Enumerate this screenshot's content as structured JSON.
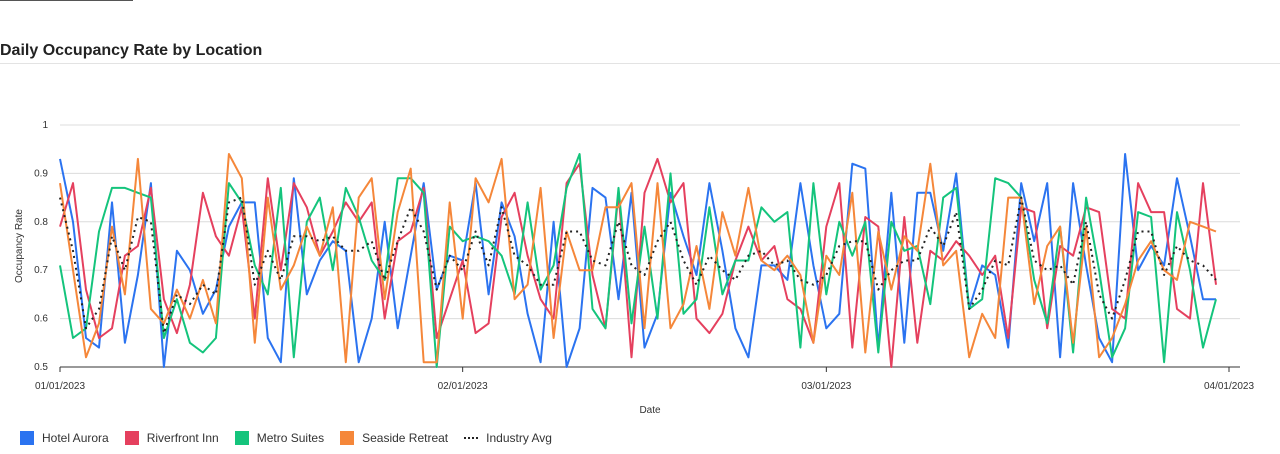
{
  "page": {
    "title": "Daily Occupancy Rate by Location"
  },
  "chart_data": {
    "type": "line",
    "title": "Daily Occupancy Rate by Location",
    "xlabel": "Date",
    "ylabel": "Occupancy Rate",
    "xlim": [
      "01/01/2023",
      "04/01/2023"
    ],
    "ylim": [
      0.5,
      1
    ],
    "grid": true,
    "legend_position": "bottom-left",
    "x_tick_labels": [
      "01/01/2023",
      "02/01/2023",
      "03/01/2023",
      "04/01/2023"
    ],
    "y_tick_labels": [
      "0.5",
      "0.6",
      "0.7",
      "0.8",
      "0.9",
      "1"
    ],
    "x": [
      "01/01",
      "01/02",
      "01/03",
      "01/04",
      "01/05",
      "01/06",
      "01/07",
      "01/08",
      "01/09",
      "01/10",
      "01/11",
      "01/12",
      "01/13",
      "01/14",
      "01/15",
      "01/16",
      "01/17",
      "01/18",
      "01/19",
      "01/20",
      "01/21",
      "01/22",
      "01/23",
      "01/24",
      "01/25",
      "01/26",
      "01/27",
      "01/28",
      "01/29",
      "01/30",
      "01/31",
      "02/01",
      "02/02",
      "02/03",
      "02/04",
      "02/05",
      "02/06",
      "02/07",
      "02/08",
      "02/09",
      "02/10",
      "02/11",
      "02/12",
      "02/13",
      "02/14",
      "02/15",
      "02/16",
      "02/17",
      "02/18",
      "02/19",
      "02/20",
      "02/21",
      "02/22",
      "02/23",
      "02/24",
      "02/25",
      "02/26",
      "02/27",
      "02/28",
      "03/01",
      "03/02",
      "03/03",
      "03/04",
      "03/05",
      "03/06",
      "03/07",
      "03/08",
      "03/09",
      "03/10",
      "03/11",
      "03/12",
      "03/13",
      "03/14",
      "03/15",
      "03/16",
      "03/17",
      "03/18",
      "03/19",
      "03/20",
      "03/21",
      "03/22",
      "03/23",
      "03/24",
      "03/25",
      "03/26",
      "03/27",
      "03/28",
      "03/29",
      "03/30",
      "03/31"
    ],
    "series": [
      {
        "name": "Hotel Aurora",
        "color": "#2b73f0",
        "style": "solid",
        "values": [
          0.93,
          0.8,
          0.56,
          0.54,
          0.84,
          0.55,
          0.69,
          0.88,
          0.5,
          0.74,
          0.7,
          0.61,
          0.66,
          0.79,
          0.84,
          0.84,
          0.56,
          0.51,
          0.89,
          0.65,
          0.72,
          0.76,
          0.74,
          0.51,
          0.6,
          0.8,
          0.58,
          0.73,
          0.88,
          0.66,
          0.73,
          0.72,
          0.88,
          0.65,
          0.84,
          0.77,
          0.61,
          0.51,
          0.8,
          0.5,
          0.58,
          0.87,
          0.85,
          0.64,
          0.86,
          0.54,
          0.61,
          0.86,
          0.77,
          0.69,
          0.88,
          0.74,
          0.58,
          0.52,
          0.71,
          0.71,
          0.68,
          0.88,
          0.71,
          0.58,
          0.61,
          0.92,
          0.91,
          0.54,
          0.86,
          0.55,
          0.86,
          0.86,
          0.74,
          0.9,
          0.62,
          0.71,
          0.69,
          0.54,
          0.88,
          0.76,
          0.88,
          0.52,
          0.88,
          0.71,
          0.56,
          0.51,
          0.94,
          0.7,
          0.75,
          0.71,
          0.89,
          0.77,
          0.64,
          0.64
        ]
      },
      {
        "name": "Riverfront Inn",
        "color": "#e5405e",
        "style": "solid",
        "values": [
          0.79,
          0.88,
          0.66,
          0.56,
          0.58,
          0.73,
          0.75,
          0.87,
          0.64,
          0.57,
          0.67,
          0.86,
          0.77,
          0.73,
          0.83,
          0.6,
          0.89,
          0.7,
          0.88,
          0.83,
          0.73,
          0.78,
          0.84,
          0.8,
          0.84,
          0.6,
          0.76,
          0.78,
          0.87,
          0.56,
          0.64,
          0.72,
          0.57,
          0.59,
          0.81,
          0.86,
          0.73,
          0.64,
          0.6,
          0.88,
          0.92,
          0.69,
          0.58,
          0.86,
          0.52,
          0.86,
          0.93,
          0.84,
          0.88,
          0.6,
          0.57,
          0.61,
          0.72,
          0.79,
          0.72,
          0.75,
          0.64,
          0.62,
          0.55,
          0.79,
          0.88,
          0.54,
          0.81,
          0.79,
          0.5,
          0.81,
          0.55,
          0.74,
          0.72,
          0.76,
          0.73,
          0.69,
          0.73,
          0.56,
          0.83,
          0.82,
          0.58,
          0.75,
          0.73,
          0.83,
          0.82,
          0.62,
          0.6,
          0.88,
          0.82,
          0.82,
          0.62,
          0.6,
          0.88,
          0.67
        ]
      },
      {
        "name": "Metro Suites",
        "color": "#14c47c",
        "style": "solid",
        "values": [
          0.71,
          0.56,
          0.58,
          0.78,
          0.87,
          0.87,
          0.86,
          0.85,
          0.56,
          0.64,
          0.55,
          0.53,
          0.56,
          0.88,
          0.84,
          0.71,
          0.65,
          0.87,
          0.52,
          0.8,
          0.85,
          0.7,
          0.87,
          0.81,
          0.72,
          0.68,
          0.89,
          0.89,
          0.86,
          0.5,
          0.79,
          0.76,
          0.77,
          0.76,
          0.73,
          0.65,
          0.84,
          0.66,
          0.71,
          0.87,
          0.94,
          0.62,
          0.58,
          0.87,
          0.59,
          0.79,
          0.6,
          0.9,
          0.61,
          0.64,
          0.83,
          0.65,
          0.72,
          0.72,
          0.83,
          0.8,
          0.82,
          0.54,
          0.88,
          0.65,
          0.8,
          0.73,
          0.8,
          0.53,
          0.8,
          0.74,
          0.75,
          0.63,
          0.85,
          0.87,
          0.62,
          0.64,
          0.89,
          0.88,
          0.85,
          0.68,
          0.59,
          0.79,
          0.53,
          0.85,
          0.7,
          0.52,
          0.58,
          0.82,
          0.81,
          0.51,
          0.82,
          0.7,
          0.54,
          0.64
        ]
      },
      {
        "name": "Seaside Retreat",
        "color": "#f5873a",
        "style": "solid",
        "values": [
          0.88,
          0.7,
          0.52,
          0.59,
          0.79,
          0.65,
          0.93,
          0.62,
          0.59,
          0.66,
          0.6,
          0.68,
          0.59,
          0.94,
          0.89,
          0.55,
          0.85,
          0.66,
          0.71,
          0.79,
          0.73,
          0.83,
          0.51,
          0.85,
          0.89,
          0.64,
          0.82,
          0.91,
          0.51,
          0.51,
          0.84,
          0.6,
          0.89,
          0.84,
          0.93,
          0.64,
          0.67,
          0.87,
          0.56,
          0.78,
          0.7,
          0.7,
          0.83,
          0.83,
          0.88,
          0.58,
          0.88,
          0.58,
          0.63,
          0.75,
          0.62,
          0.82,
          0.73,
          0.87,
          0.72,
          0.7,
          0.73,
          0.69,
          0.55,
          0.73,
          0.69,
          0.86,
          0.53,
          0.78,
          0.66,
          0.77,
          0.74,
          0.92,
          0.71,
          0.74,
          0.52,
          0.61,
          0.56,
          0.85,
          0.85,
          0.63,
          0.75,
          0.79,
          0.55,
          0.79,
          0.52,
          0.56,
          0.63,
          0.72,
          0.76,
          0.7,
          0.68,
          0.8,
          0.79,
          0.78
        ]
      },
      {
        "name": "Industry Avg",
        "color": "#222222",
        "style": "dotted",
        "values": [
          0.85,
          0.74,
          0.58,
          0.62,
          0.77,
          0.7,
          0.81,
          0.8,
          0.57,
          0.65,
          0.63,
          0.67,
          0.65,
          0.84,
          0.85,
          0.67,
          0.74,
          0.68,
          0.77,
          0.77,
          0.76,
          0.77,
          0.74,
          0.74,
          0.76,
          0.68,
          0.76,
          0.83,
          0.78,
          0.66,
          0.73,
          0.7,
          0.78,
          0.71,
          0.83,
          0.73,
          0.71,
          0.67,
          0.67,
          0.78,
          0.78,
          0.72,
          0.71,
          0.8,
          0.71,
          0.69,
          0.76,
          0.8,
          0.72,
          0.67,
          0.73,
          0.7,
          0.68,
          0.73,
          0.74,
          0.71,
          0.72,
          0.68,
          0.67,
          0.69,
          0.75,
          0.76,
          0.76,
          0.66,
          0.7,
          0.72,
          0.72,
          0.79,
          0.75,
          0.82,
          0.62,
          0.66,
          0.72,
          0.71,
          0.85,
          0.72,
          0.7,
          0.71,
          0.67,
          0.8,
          0.65,
          0.6,
          0.68,
          0.78,
          0.78,
          0.69,
          0.75,
          0.72,
          0.71,
          0.68
        ]
      }
    ]
  }
}
